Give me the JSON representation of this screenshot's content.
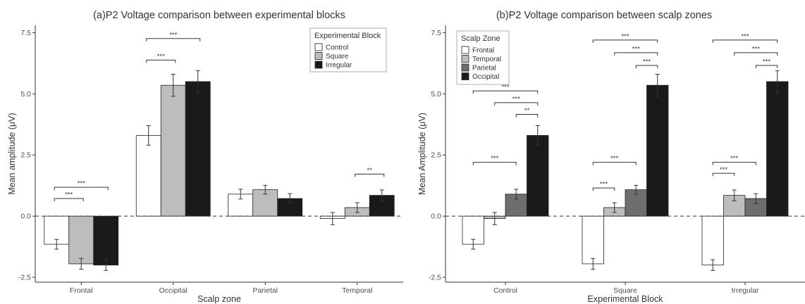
{
  "chart_data": [
    {
      "type": "bar",
      "title": "(a)P2 Voltage comparison between experimental blocks",
      "xlabel": "Scalp zone",
      "ylabel": "Mean amplitude (μV)",
      "ylim": [
        -2.7,
        7.8
      ],
      "yticks": [
        -2.5,
        0.0,
        2.5,
        5.0,
        7.5
      ],
      "ytick_labels": [
        "-2.5",
        "0.0",
        "2.5",
        "5.0",
        "7.5"
      ],
      "grid": false,
      "reference_line": 0,
      "categories": [
        "Frontal",
        "Occipital",
        "Parietal",
        "Temporal"
      ],
      "legend": {
        "title": "Experimental Block",
        "position": "top-right"
      },
      "series": [
        {
          "name": "Control",
          "color": "#ffffff",
          "values": [
            -1.15,
            3.3,
            0.9,
            -0.1
          ],
          "errors": [
            0.2,
            0.4,
            0.2,
            0.25
          ]
        },
        {
          "name": "Square",
          "color": "#bdbdbd",
          "values": [
            -1.95,
            5.35,
            1.08,
            0.35
          ],
          "errors": [
            0.22,
            0.45,
            0.18,
            0.2
          ]
        },
        {
          "name": "Irregular",
          "color": "#1a1a1a",
          "values": [
            -2.0,
            5.5,
            0.72,
            0.85
          ],
          "errors": [
            0.22,
            0.45,
            0.2,
            0.22
          ]
        }
      ],
      "significance": [
        {
          "category": 0,
          "from": 0,
          "to": 1,
          "y": 0.72,
          "label": "***"
        },
        {
          "category": 0,
          "from": 0,
          "to": 2,
          "y": 1.18,
          "label": "***"
        },
        {
          "category": 1,
          "from": 0,
          "to": 1,
          "y": 6.38,
          "label": "***"
        },
        {
          "category": 1,
          "from": 0,
          "to": 2,
          "y": 7.26,
          "label": "***"
        },
        {
          "category": 3,
          "from": 1,
          "to": 2,
          "y": 1.72,
          "label": "**"
        }
      ]
    },
    {
      "type": "bar",
      "title": "(b)P2 Voltage comparison between scalp zones",
      "xlabel": "Experimental Block",
      "ylabel": "Mean Amplitude (μV)",
      "ylim": [
        -2.7,
        7.8
      ],
      "yticks": [
        -2.5,
        0.0,
        2.5,
        5.0,
        7.5
      ],
      "ytick_labels": [
        "-2.5",
        "0.0",
        "2.5",
        "5.0",
        "7.5"
      ],
      "grid": false,
      "reference_line": 0,
      "categories": [
        "Control",
        "Square",
        "Irregular"
      ],
      "legend": {
        "title": "Scalp Zone",
        "position": "top-left"
      },
      "series": [
        {
          "name": "Frontal",
          "color": "#ffffff",
          "values": [
            -1.15,
            -1.95,
            -2.0
          ],
          "errors": [
            0.2,
            0.22,
            0.22
          ]
        },
        {
          "name": "Temporal",
          "color": "#bdbdbd",
          "values": [
            -0.1,
            0.35,
            0.85
          ],
          "errors": [
            0.25,
            0.2,
            0.22
          ]
        },
        {
          "name": "Parietal",
          "color": "#6e6e6e",
          "values": [
            0.9,
            1.08,
            0.72
          ],
          "errors": [
            0.2,
            0.18,
            0.2
          ]
        },
        {
          "name": "Occipital",
          "color": "#1a1a1a",
          "values": [
            3.3,
            5.35,
            5.5
          ],
          "errors": [
            0.4,
            0.45,
            0.45
          ]
        }
      ],
      "significance": [
        {
          "category": 0,
          "from": 0,
          "to": 3,
          "y": 5.12,
          "label": "***"
        },
        {
          "category": 0,
          "from": 1,
          "to": 3,
          "y": 4.64,
          "label": "***"
        },
        {
          "category": 0,
          "from": 2,
          "to": 3,
          "y": 4.16,
          "label": "**"
        },
        {
          "category": 0,
          "from": 0,
          "to": 2,
          "y": 2.2,
          "label": "***"
        },
        {
          "category": 1,
          "from": 0,
          "to": 3,
          "y": 7.2,
          "label": "***"
        },
        {
          "category": 1,
          "from": 1,
          "to": 3,
          "y": 6.68,
          "label": "***"
        },
        {
          "category": 1,
          "from": 2,
          "to": 3,
          "y": 6.16,
          "label": "***"
        },
        {
          "category": 1,
          "from": 0,
          "to": 2,
          "y": 2.2,
          "label": "***"
        },
        {
          "category": 1,
          "from": 0,
          "to": 1,
          "y": 1.15,
          "label": "***"
        },
        {
          "category": 2,
          "from": 0,
          "to": 3,
          "y": 7.2,
          "label": "***"
        },
        {
          "category": 2,
          "from": 1,
          "to": 3,
          "y": 6.68,
          "label": "***"
        },
        {
          "category": 2,
          "from": 2,
          "to": 3,
          "y": 6.16,
          "label": "***"
        },
        {
          "category": 2,
          "from": 0,
          "to": 2,
          "y": 2.2,
          "label": "***"
        },
        {
          "category": 2,
          "from": 0,
          "to": 1,
          "y": 1.75,
          "label": "***"
        }
      ]
    }
  ]
}
